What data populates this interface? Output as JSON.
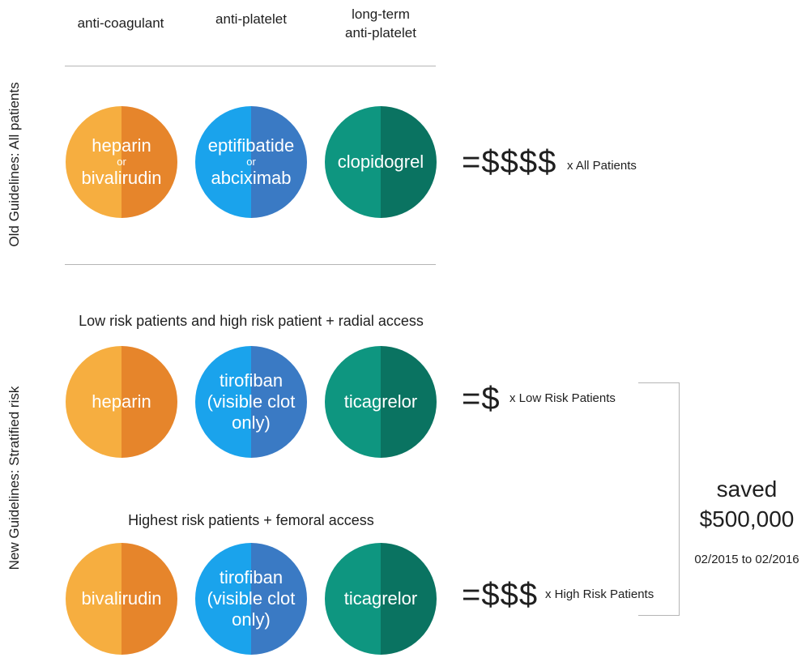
{
  "columns": {
    "col1": "anti-coagulant",
    "col2": "anti-platelet",
    "col3_line1": "long-term",
    "col3_line2": "anti-platelet"
  },
  "old_guidelines": {
    "label": "Old Guidelines: All patients",
    "drug1": {
      "top": "heparin",
      "connector": "or",
      "bottom": "bivalirudin"
    },
    "drug2": {
      "top": "eptifibatide",
      "connector": "or",
      "bottom": "abciximab"
    },
    "drug3": "clopidogrel",
    "cost": "=$$$$",
    "multiplier": "x  All Patients"
  },
  "new_guidelines": {
    "label": "New Guidelines: Stratified risk",
    "low_risk": {
      "title": "Low risk patients and high risk patient + radial access",
      "drug1": "heparin",
      "drug2": [
        "tirofiban",
        "(visible clot",
        "only)"
      ],
      "drug3": "ticagrelor",
      "cost": "=$",
      "multiplier": "x  Low Risk Patients"
    },
    "high_risk": {
      "title": "Highest risk patients + femoral access",
      "drug1": "bivalirudin",
      "drug2": [
        "tirofiban",
        "(visible clot",
        "only)"
      ],
      "drug3": "ticagrelor",
      "cost": "=$$$",
      "multiplier": "x  High Risk Patients"
    }
  },
  "savings": {
    "title": "saved",
    "amount": "$500,000",
    "period": "02/2015 to 02/2016"
  },
  "colors": {
    "orange_light": "#f6ae40",
    "orange_dark": "#e6852b",
    "blue_light": "#1aa3ec",
    "blue_dark": "#3a7ac4",
    "teal_light": "#0e9680",
    "teal_dark": "#0a7361",
    "divider": "#b5b5b5"
  }
}
